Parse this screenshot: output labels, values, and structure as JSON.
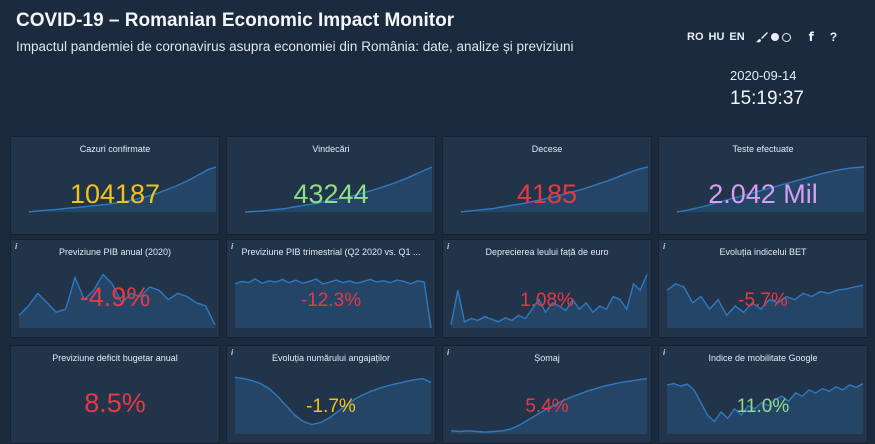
{
  "header": {
    "title": "COVID-19 – Romanian Economic Impact Monitor",
    "subtitle": "Impactul pandemiei de coronavirus asupra economiei din România: date, analize și previziuni",
    "languages": [
      "RO",
      "HU",
      "EN"
    ],
    "icons": [
      "paintbrush-icon",
      "dark-theme-dot-icon",
      "light-theme-dot-icon",
      "facebook-icon",
      "help-icon"
    ],
    "fb_glyph": "f",
    "help_glyph": "?",
    "date": "2020-09-14",
    "time": "15:19:37"
  },
  "colors": {
    "background": "#1b2a3d",
    "card": "#21344a",
    "line": "#2f79c0",
    "fill": "#2a5480",
    "yellow": "#f2c21b",
    "green": "#8fdc8a",
    "red": "#e63946",
    "purple": "#d59ff2"
  },
  "cards": [
    {
      "title": "Cazuri confirmate",
      "value": "104187",
      "color": "yellow",
      "info": false,
      "trend": [
        0,
        2,
        4,
        5,
        7,
        9,
        10,
        12,
        14,
        16,
        18,
        21,
        24,
        28,
        32,
        37,
        43,
        50,
        57,
        65,
        74,
        84,
        94,
        100
      ]
    },
    {
      "title": "Vindecări",
      "value": "43244",
      "color": "green",
      "info": false,
      "trend": [
        0,
        1,
        2,
        4,
        6,
        8,
        11,
        14,
        17,
        20,
        24,
        28,
        31,
        35,
        40,
        45,
        50,
        56,
        62,
        69,
        76,
        84,
        92,
        100
      ]
    },
    {
      "title": "Decese",
      "value": "4185",
      "color": "red",
      "info": false,
      "trend": [
        0,
        2,
        4,
        6,
        8,
        11,
        14,
        17,
        20,
        24,
        28,
        32,
        36,
        41,
        46,
        51,
        57,
        63,
        69,
        76,
        83,
        90,
        96,
        100
      ]
    },
    {
      "title": "Teste efectuate",
      "value": "2.042 Mil",
      "color": "purple",
      "info": false,
      "trend": [
        0,
        3,
        7,
        11,
        16,
        21,
        26,
        31,
        36,
        41,
        46,
        51,
        56,
        61,
        66,
        71,
        76,
        81,
        86,
        90,
        94,
        97,
        99,
        100
      ]
    },
    {
      "title": "Previziune PIB anual (2020)",
      "value": "-4.9%",
      "color": "red",
      "info": true,
      "trend": [
        20,
        35,
        55,
        40,
        25,
        30,
        80,
        45,
        60,
        85,
        70,
        40,
        55,
        50,
        65,
        60,
        45,
        55,
        50,
        40,
        35,
        5
      ]
    },
    {
      "title": "Previziune PIB trimestrial (Q2 2020 vs. Q1 ...",
      "value": "-12.3%",
      "color": "red",
      "info": true,
      "trend": [
        70,
        74,
        72,
        78,
        71,
        75,
        73,
        77,
        72,
        76,
        71,
        74,
        78,
        70,
        73,
        76,
        72,
        75,
        71,
        74,
        77,
        73,
        75,
        72,
        76,
        74,
        70,
        75,
        73,
        0
      ]
    },
    {
      "title": "Deprecierea leului față de euro",
      "value": "1.08%",
      "color": "red",
      "info": true,
      "trend": [
        5,
        60,
        10,
        15,
        12,
        18,
        14,
        10,
        16,
        12,
        20,
        15,
        30,
        45,
        25,
        40,
        35,
        28,
        45,
        30,
        40,
        25,
        35,
        30,
        50,
        45,
        30,
        70,
        60,
        85
      ]
    },
    {
      "title": "Evoluția indicelui BET",
      "value": "-5.7%",
      "color": "red",
      "info": true,
      "trend": [
        60,
        70,
        65,
        40,
        50,
        30,
        45,
        20,
        35,
        25,
        40,
        30,
        45,
        40,
        50,
        45,
        55,
        50,
        58,
        55,
        60,
        62,
        65,
        68
      ]
    },
    {
      "title": "Previziune deficit bugetar anual",
      "value": "8.5%",
      "color": "red",
      "info": false,
      "trend": []
    },
    {
      "title": "Evoluția numărului angajaților",
      "value": "-1.7%",
      "color": "yellow",
      "info": true,
      "trend": [
        90,
        88,
        85,
        80,
        72,
        60,
        45,
        30,
        20,
        15,
        18,
        25,
        35,
        45,
        55,
        62,
        68,
        73,
        77,
        80,
        83,
        86,
        88,
        82
      ]
    },
    {
      "title": "Șomaj",
      "value": "5.4%",
      "color": "red",
      "info": true,
      "trend": [
        5,
        4,
        5,
        4,
        3,
        4,
        5,
        8,
        14,
        22,
        30,
        38,
        45,
        52,
        58,
        63,
        68,
        72,
        76,
        79,
        82,
        84,
        86,
        88
      ]
    },
    {
      "title": "Indice de mobilitate Google",
      "value": "11.0%",
      "color": "green",
      "info": true,
      "trend": [
        78,
        80,
        76,
        79,
        70,
        50,
        30,
        20,
        35,
        25,
        40,
        30,
        45,
        40,
        50,
        45,
        55,
        60,
        52,
        65,
        60,
        70,
        65,
        72,
        68,
        75,
        70,
        78,
        74,
        80
      ]
    }
  ]
}
